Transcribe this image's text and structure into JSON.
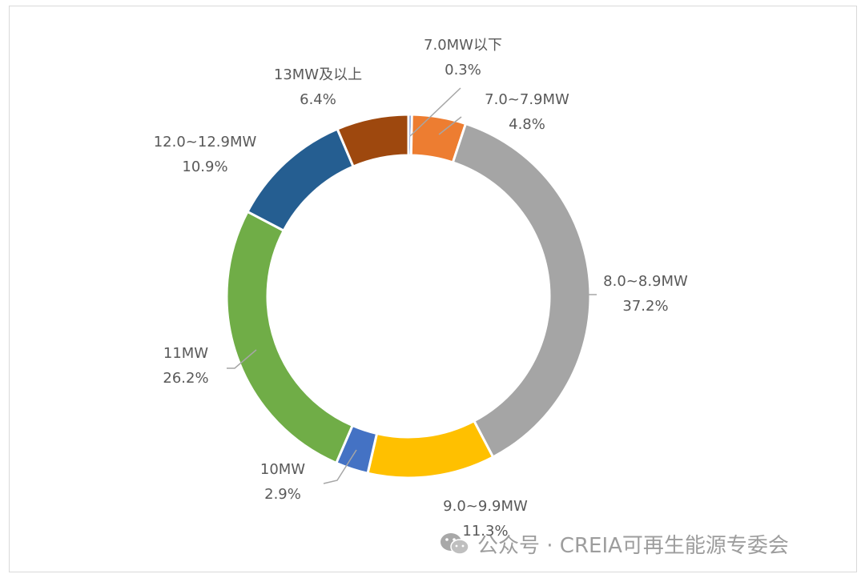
{
  "chart_data": {
    "type": "pie",
    "donut": true,
    "title": "",
    "slices": [
      {
        "label": "7.0MW以下",
        "value": 0.3,
        "value_label": "0.3%",
        "color": "#4472c4"
      },
      {
        "label": "7.0~7.9MW",
        "value": 4.8,
        "value_label": "4.8%",
        "color": "#ed7d31"
      },
      {
        "label": "8.0~8.9MW",
        "value": 37.2,
        "value_label": "37.2%",
        "color": "#a5a5a5"
      },
      {
        "label": "9.0~9.9MW",
        "value": 11.3,
        "value_label": "11.3%",
        "color": "#ffc000"
      },
      {
        "label": "10MW",
        "value": 2.9,
        "value_label": "2.9%",
        "color": "#4472c4"
      },
      {
        "label": "11MW",
        "value": 26.2,
        "value_label": "26.2%",
        "color": "#70ad47"
      },
      {
        "label": "12.0~12.9MW",
        "value": 10.9,
        "value_label": "10.9%",
        "color": "#255e91"
      },
      {
        "label": "13MW及以上",
        "value": 6.4,
        "value_label": "6.4%",
        "color": "#9e480e"
      }
    ]
  },
  "watermark": {
    "text": "公众号 · CREIA可再生能源专委会",
    "icon": "wechat-icon"
  }
}
